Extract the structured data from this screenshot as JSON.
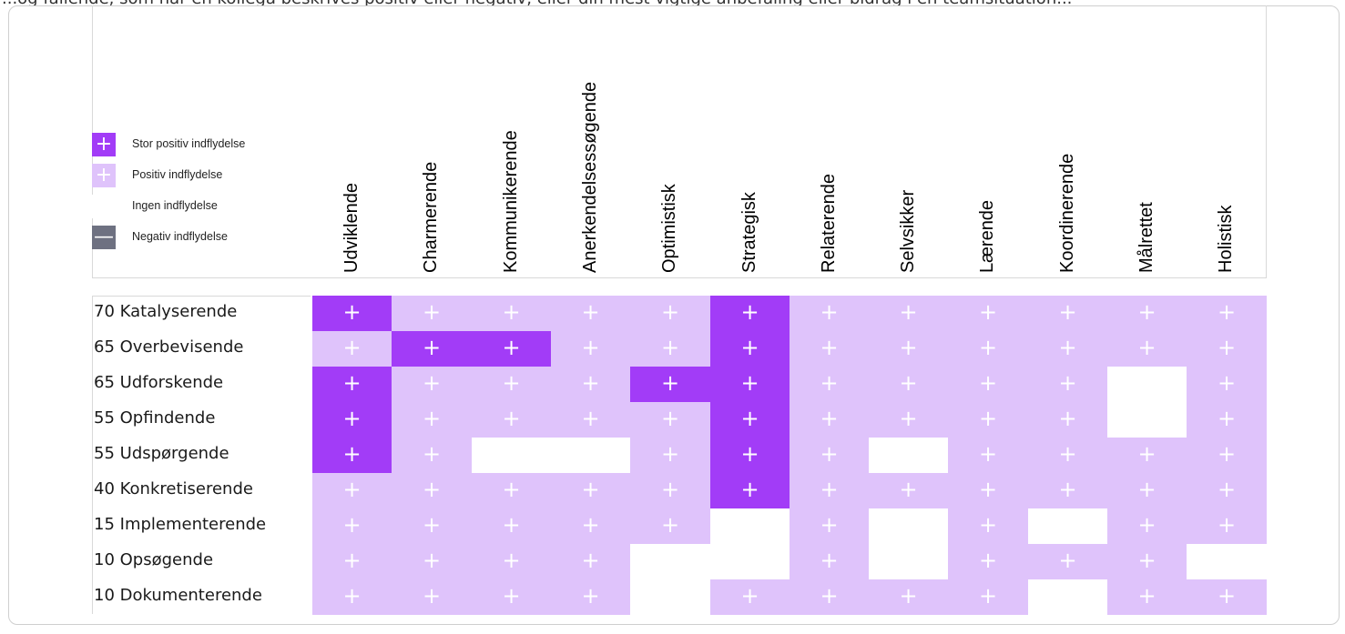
{
  "top_strip_text": "...og fallende, som når en kollega beskrives positiv eller negativ, eller din mest vigtige anbefaling eller bidrag i en teamsituation...",
  "legend": [
    {
      "label": "Stor positiv indflydelse",
      "symbol": "+",
      "color": "#a23cf7"
    },
    {
      "label": "Positiv indflydelse",
      "symbol": "+",
      "color": "#dfc3fb"
    },
    {
      "label": "Ingen indflydelse",
      "symbol": "",
      "color": "#ffffff"
    },
    {
      "label": "Negativ indflydelse",
      "symbol": "—",
      "color": "#6e7181"
    }
  ],
  "columns": [
    "Udviklende",
    "Charmerende",
    "Kommunikerende",
    "Anerkendelsessøgende",
    "Optimistisk",
    "Strategisk",
    "Relaterende",
    "Selvsikker",
    "Lærende",
    "Koordinerende",
    "Målrettet",
    "Holistisk"
  ],
  "influence_colors": {
    "S": "#a23cf7",
    "P": "#dfc3fb",
    "N": "#ffffff",
    "X": "#6e7181"
  },
  "influence_symbols": {
    "S": "+",
    "P": "+",
    "N": "",
    "X": "—"
  },
  "rows": [
    {
      "score": "70",
      "name": "Katalyserende",
      "cells": [
        "S",
        "P",
        "P",
        "P",
        "P",
        "S",
        "P",
        "P",
        "P",
        "P",
        "P",
        "P"
      ]
    },
    {
      "score": "65",
      "name": "Overbevisende",
      "cells": [
        "P",
        "S",
        "S",
        "P",
        "P",
        "S",
        "P",
        "P",
        "P",
        "P",
        "P",
        "P"
      ]
    },
    {
      "score": "65",
      "name": "Udforskende",
      "cells": [
        "S",
        "P",
        "P",
        "P",
        "S",
        "S",
        "P",
        "P",
        "P",
        "P",
        "N",
        "P"
      ]
    },
    {
      "score": "55",
      "name": "Opfindende",
      "cells": [
        "S",
        "P",
        "P",
        "P",
        "P",
        "S",
        "P",
        "P",
        "P",
        "P",
        "N",
        "P"
      ]
    },
    {
      "score": "55",
      "name": "Udspørgende",
      "cells": [
        "S",
        "P",
        "N",
        "N",
        "P",
        "S",
        "P",
        "N",
        "P",
        "P",
        "P",
        "P"
      ]
    },
    {
      "score": "40",
      "name": "Konkretiserende",
      "cells": [
        "P",
        "P",
        "P",
        "P",
        "P",
        "S",
        "P",
        "P",
        "P",
        "P",
        "P",
        "P"
      ]
    },
    {
      "score": "15",
      "name": "Implementerende",
      "cells": [
        "P",
        "P",
        "P",
        "P",
        "P",
        "N",
        "P",
        "N",
        "P",
        "N",
        "P",
        "P"
      ]
    },
    {
      "score": "10",
      "name": "Opsøgende",
      "cells": [
        "P",
        "P",
        "P",
        "P",
        "N",
        "N",
        "P",
        "N",
        "P",
        "P",
        "P",
        "N"
      ]
    },
    {
      "score": "10",
      "name": "Dokumenterende",
      "cells": [
        "P",
        "P",
        "P",
        "P",
        "N",
        "P",
        "P",
        "P",
        "P",
        "N",
        "P",
        "P"
      ]
    }
  ]
}
